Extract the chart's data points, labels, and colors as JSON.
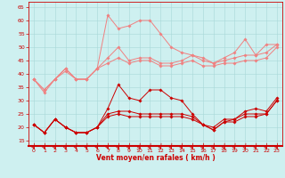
{
  "xlabel": "Vent moyen/en rafales ( km/h )",
  "ylim": [
    13,
    67
  ],
  "xlim": [
    -0.5,
    23.5
  ],
  "yticks": [
    15,
    20,
    25,
    30,
    35,
    40,
    45,
    50,
    55,
    60,
    65
  ],
  "xticks": [
    0,
    1,
    2,
    3,
    4,
    5,
    6,
    7,
    8,
    9,
    10,
    11,
    12,
    13,
    14,
    15,
    16,
    17,
    18,
    19,
    20,
    21,
    22,
    23
  ],
  "bg_color": "#cef0f0",
  "grid_color": "#a8d8d8",
  "line_color_light": "#f08080",
  "line_color_dark": "#cc0000",
  "series_light": [
    [
      38,
      33,
      38,
      42,
      38,
      38,
      42,
      62,
      57,
      58,
      60,
      60,
      55,
      50,
      48,
      47,
      46,
      44,
      46,
      48,
      53,
      47,
      51,
      51
    ],
    [
      38,
      34,
      38,
      42,
      38,
      38,
      42,
      46,
      50,
      45,
      46,
      46,
      44,
      44,
      45,
      47,
      45,
      44,
      45,
      46,
      47,
      47,
      48,
      51
    ],
    [
      38,
      34,
      38,
      41,
      38,
      38,
      42,
      44,
      46,
      44,
      45,
      45,
      43,
      43,
      44,
      45,
      43,
      43,
      44,
      44,
      45,
      45,
      46,
      50
    ]
  ],
  "series_dark": [
    [
      21,
      18,
      23,
      20,
      18,
      18,
      20,
      27,
      36,
      31,
      30,
      34,
      34,
      31,
      30,
      25,
      21,
      20,
      23,
      23,
      26,
      27,
      26,
      31
    ],
    [
      21,
      18,
      23,
      20,
      18,
      18,
      20,
      25,
      26,
      26,
      25,
      25,
      25,
      25,
      25,
      24,
      21,
      19,
      22,
      23,
      25,
      25,
      25,
      30
    ],
    [
      21,
      18,
      23,
      20,
      18,
      18,
      20,
      24,
      25,
      24,
      24,
      24,
      24,
      24,
      24,
      23,
      21,
      19,
      22,
      22,
      24,
      24,
      25,
      30
    ]
  ]
}
